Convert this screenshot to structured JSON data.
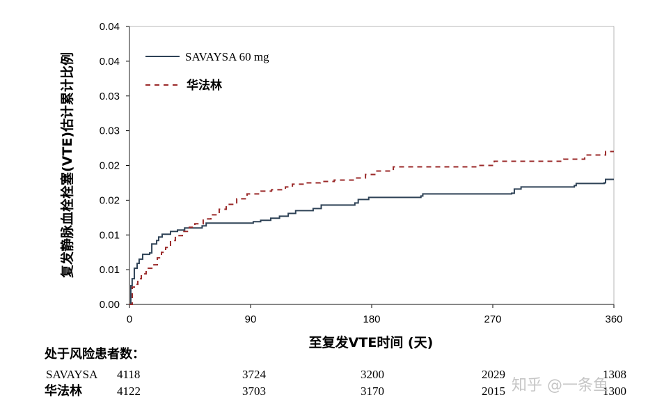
{
  "chart_data": {
    "type": "line",
    "step": true,
    "xlabel": "至复发VTE时间 (天)",
    "ylabel": "复发静脉血栓栓塞(VTE)估计累计比例",
    "xlim": [
      0,
      360
    ],
    "ylim": [
      0,
      0.04
    ],
    "x_ticks": [
      "0",
      "90",
      "180",
      "270",
      "360"
    ],
    "x_tick_values": [
      0,
      90,
      180,
      270,
      360
    ],
    "y_ticks": [
      "0.00",
      "0.01",
      "0.01",
      "0.02",
      "0.02",
      "0.03",
      "0.03",
      "0.04",
      "0.04"
    ],
    "y_tick_values": [
      0,
      0.005,
      0.01,
      0.015,
      0.02,
      0.025,
      0.03,
      0.035,
      0.04
    ],
    "grid": false,
    "legend_position": "top-left",
    "series": [
      {
        "name": "SAVAYSA 60 mg",
        "color": "#2e4256",
        "style": "solid",
        "points": [
          [
            0,
            0
          ],
          [
            1,
            0.0027
          ],
          [
            2,
            0.0037
          ],
          [
            3.6,
            0.0052
          ],
          [
            5.7,
            0.0059
          ],
          [
            7.2,
            0.0065
          ],
          [
            9.8,
            0.0072
          ],
          [
            15,
            0.0074
          ],
          [
            16.6,
            0.0087
          ],
          [
            20.2,
            0.0092
          ],
          [
            21.7,
            0.0097
          ],
          [
            24.3,
            0.0101
          ],
          [
            30.5,
            0.0105
          ],
          [
            35.7,
            0.0107
          ],
          [
            41,
            0.011
          ],
          [
            54,
            0.0113
          ],
          [
            57,
            0.0117
          ],
          [
            92,
            0.0119
          ],
          [
            97.5,
            0.0121
          ],
          [
            105,
            0.0124
          ],
          [
            111.5,
            0.0127
          ],
          [
            118,
            0.0131
          ],
          [
            123.5,
            0.0135
          ],
          [
            136.5,
            0.0138
          ],
          [
            142.5,
            0.0143
          ],
          [
            167.5,
            0.0146
          ],
          [
            170,
            0.0151
          ],
          [
            177.8,
            0.0154
          ],
          [
            216.6,
            0.0156
          ],
          [
            218,
            0.0159
          ],
          [
            284,
            0.016
          ],
          [
            286,
            0.0166
          ],
          [
            291,
            0.0169
          ],
          [
            330.6,
            0.0171
          ],
          [
            332,
            0.0174
          ],
          [
            352.8,
            0.0175
          ],
          [
            353.8,
            0.018
          ],
          [
            360,
            0.018
          ]
        ]
      },
      {
        "name": "华法林",
        "color": "#9b2a2a",
        "style": "dashed",
        "points": [
          [
            0,
            0
          ],
          [
            2.1,
            0.0025
          ],
          [
            4.7,
            0.0029
          ],
          [
            6.2,
            0.0037
          ],
          [
            8.8,
            0.0044
          ],
          [
            12.4,
            0.0052
          ],
          [
            17.6,
            0.0057
          ],
          [
            20.7,
            0.0067
          ],
          [
            23.8,
            0.0075
          ],
          [
            26.9,
            0.0082
          ],
          [
            30.5,
            0.0092
          ],
          [
            34.1,
            0.0099
          ],
          [
            39.3,
            0.0105
          ],
          [
            44.5,
            0.0111
          ],
          [
            48.6,
            0.0116
          ],
          [
            54.8,
            0.0123
          ],
          [
            60.5,
            0.0129
          ],
          [
            66.7,
            0.0137
          ],
          [
            71.9,
            0.0144
          ],
          [
            79.7,
            0.0152
          ],
          [
            87.4,
            0.0159
          ],
          [
            97.8,
            0.0163
          ],
          [
            105.6,
            0.0165
          ],
          [
            115.9,
            0.0169
          ],
          [
            121.1,
            0.0173
          ],
          [
            131.5,
            0.0175
          ],
          [
            141.8,
            0.0177
          ],
          [
            152.2,
            0.0179
          ],
          [
            167.6,
            0.0182
          ],
          [
            175.4,
            0.0187
          ],
          [
            183.2,
            0.0192
          ],
          [
            196.1,
            0.0198
          ],
          [
            258.2,
            0.02
          ],
          [
            271.1,
            0.0206
          ],
          [
            322.8,
            0.0209
          ],
          [
            338.3,
            0.0215
          ],
          [
            353.8,
            0.022
          ],
          [
            360,
            0.022
          ]
        ]
      }
    ]
  },
  "risk_table": {
    "title": "处于风险患者数：",
    "rows": [
      {
        "label": "SAVAYSA",
        "values": [
          "4118",
          "3724",
          "3200",
          "2029",
          "1308"
        ]
      },
      {
        "label": "华法林",
        "values": [
          "4122",
          "3703",
          "3170",
          "2015",
          "1300"
        ]
      }
    ]
  },
  "watermark": "知乎 @一条鱼"
}
